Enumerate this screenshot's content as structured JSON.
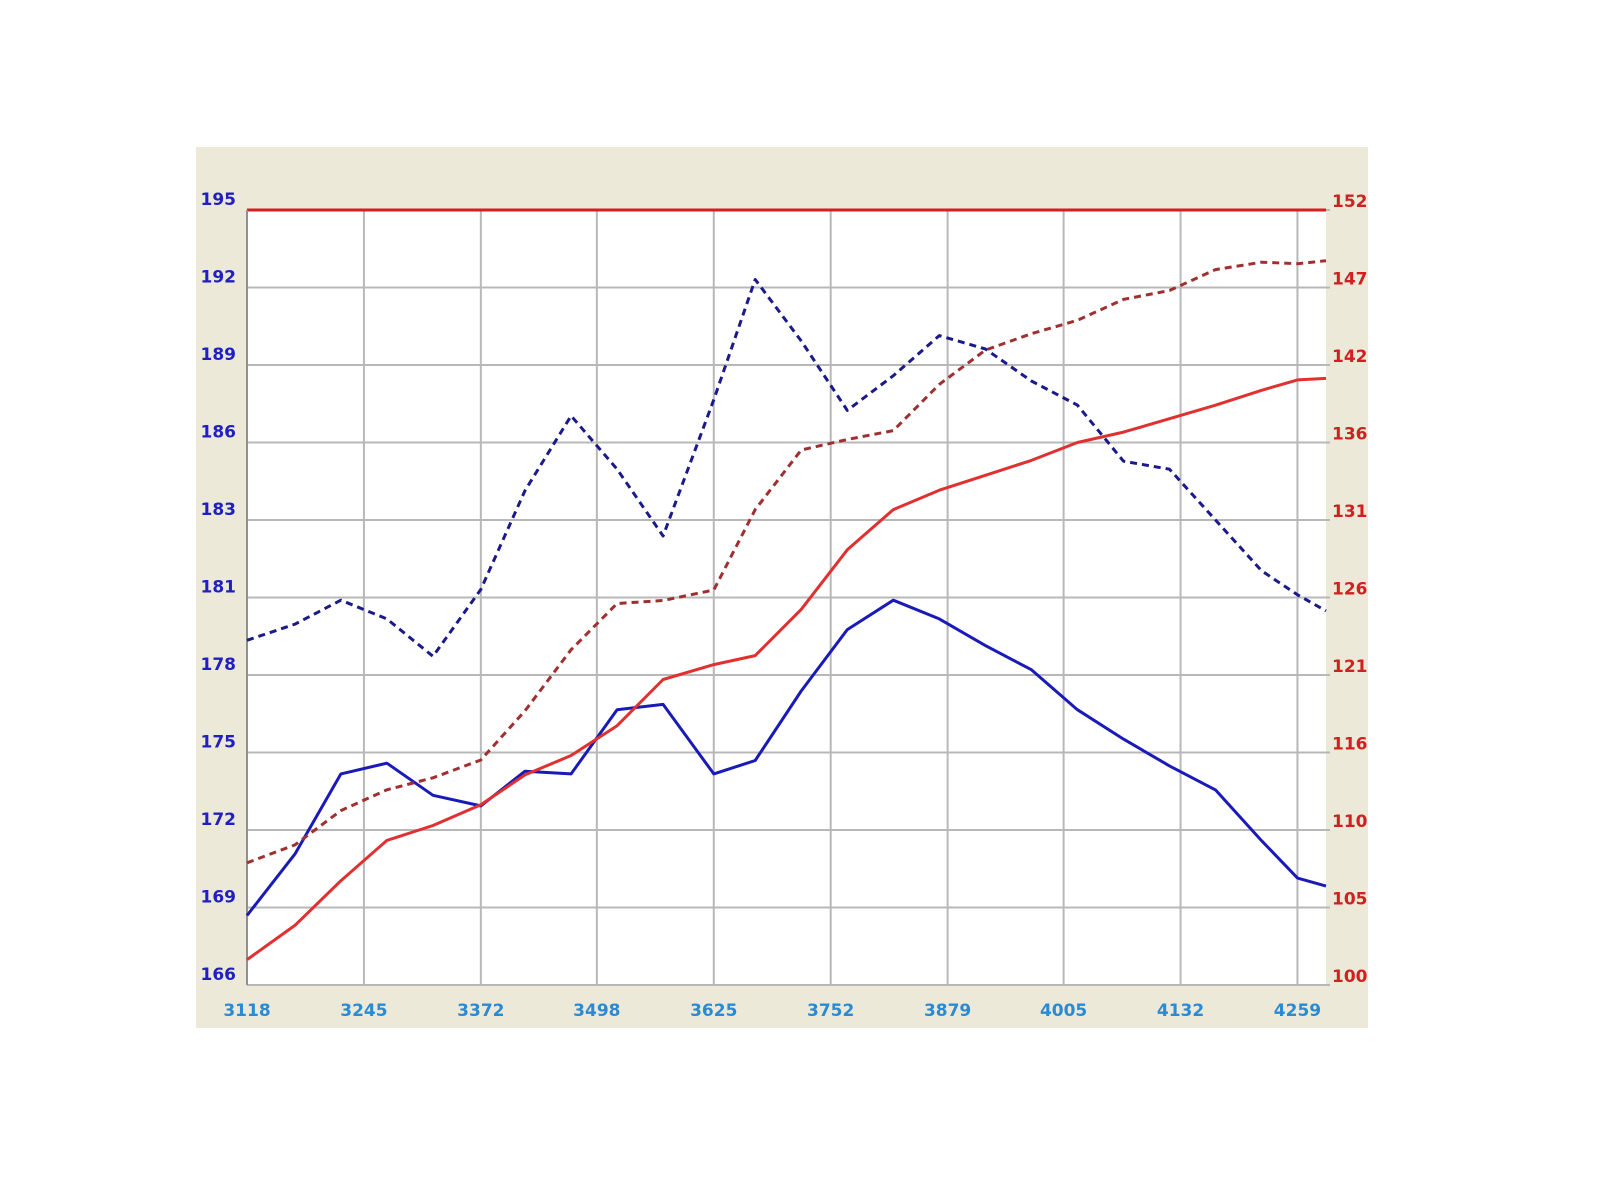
{
  "chart_data": {
    "type": "line",
    "x": [
      3118,
      3170,
      3220,
      3270,
      3320,
      3372,
      3420,
      3470,
      3520,
      3570,
      3625,
      3670,
      3720,
      3770,
      3820,
      3870,
      3920,
      3970,
      4020,
      4070,
      4120,
      4170,
      4220,
      4259,
      4290
    ],
    "xlim": [
      3118,
      4290
    ],
    "xticks": [
      3118,
      3245,
      3372,
      3498,
      3625,
      3752,
      3879,
      4005,
      4132,
      4259
    ],
    "ylim": [
      166,
      195
    ],
    "yticks": [
      166,
      {
        "value": 168.9,
        "label": "169"
      },
      {
        "value": 171.8,
        "label": "172"
      },
      {
        "value": 174.7,
        "label": "175"
      },
      {
        "value": 177.6,
        "label": "178"
      },
      {
        "value": 180.5,
        "label": "181"
      },
      {
        "value": 183.4,
        "label": "183"
      },
      {
        "value": 186.3,
        "label": "186"
      },
      {
        "value": 189.2,
        "label": "189"
      },
      {
        "value": 192.1,
        "label": "192"
      },
      195
    ],
    "y2lim": [
      100,
      152
    ],
    "y2ticks": [
      100,
      {
        "value": 105.2,
        "label": "105"
      },
      {
        "value": 110.4,
        "label": "110"
      },
      {
        "value": 115.6,
        "label": "116"
      },
      {
        "value": 120.8,
        "label": "121"
      },
      126,
      {
        "value": 131.2,
        "label": "131"
      },
      {
        "value": 136.4,
        "label": "136"
      },
      {
        "value": 141.6,
        "label": "142"
      },
      {
        "value": 146.8,
        "label": "147"
      },
      152
    ],
    "grid": true,
    "series": [
      {
        "color": "#1a1ab8",
        "dashed": false,
        "values": [
          168.6,
          170.9,
          173.9,
          174.3,
          173.1,
          172.7,
          174.0,
          173.9,
          176.3,
          176.5,
          173.9,
          174.4,
          177.0,
          179.3,
          180.4,
          179.7,
          178.7,
          177.8,
          176.3,
          175.2,
          174.2,
          173.3,
          171.4,
          170.0,
          169.7
        ]
      },
      {
        "color": "#1a1a8a",
        "dashed": true,
        "values": [
          178.9,
          179.5,
          180.4,
          179.7,
          178.3,
          180.8,
          184.5,
          187.3,
          185.3,
          182.8,
          187.9,
          192.4,
          190.1,
          187.5,
          188.8,
          190.3,
          189.8,
          188.6,
          187.7,
          185.6,
          185.3,
          183.4,
          181.5,
          180.6,
          180.0
        ]
      },
      {
        "color": "#e03030",
        "dashed": false,
        "axis": "y2",
        "values": [
          101.7,
          104.0,
          107.0,
          109.7,
          110.7,
          112.1,
          114.1,
          115.4,
          117.4,
          120.5,
          121.5,
          122.1,
          125.2,
          129.2,
          131.9,
          133.2,
          134.2,
          135.2,
          136.4,
          137.1,
          138.0,
          138.9,
          139.9,
          140.6,
          140.7
        ]
      },
      {
        "color": "#a03030",
        "dashed": true,
        "axis": "y2",
        "values": [
          108.2,
          109.4,
          111.7,
          113.1,
          113.9,
          115.1,
          118.4,
          122.5,
          125.6,
          125.8,
          126.5,
          131.9,
          135.9,
          136.6,
          137.2,
          140.3,
          142.6,
          143.7,
          144.6,
          146.0,
          146.6,
          148.0,
          148.5,
          148.4,
          148.6
        ]
      }
    ]
  }
}
